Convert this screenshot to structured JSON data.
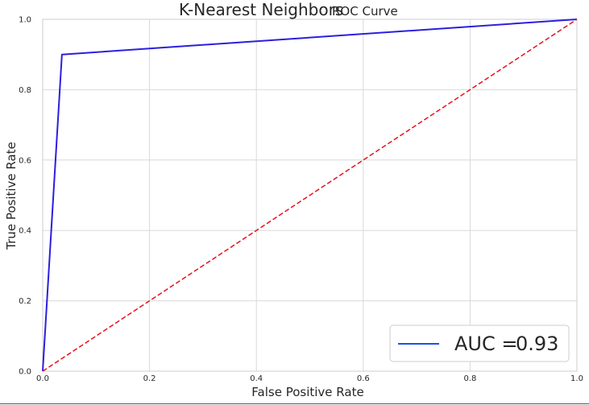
{
  "title": {
    "main": "K-Nearest Neighbors",
    "sub": "ROC Curve"
  },
  "colors": {
    "roc_line": "#2b1fe0",
    "diagonal": "#e8101c",
    "grid": "#d9d9d9",
    "axis_frame": "#cccccc",
    "legend_line": "#1f4fe8"
  },
  "chart_data": {
    "type": "line",
    "title": "K-Nearest Neighbors ROC Curve",
    "xlabel": "False Positive Rate",
    "ylabel": "True Positive Rate",
    "xlim": [
      0.0,
      1.0
    ],
    "ylim": [
      0.0,
      1.0
    ],
    "xticks": [
      "0.0",
      "0.2",
      "0.4",
      "0.6",
      "0.8",
      "1.0"
    ],
    "yticks": [
      "0.0",
      "0.2",
      "0.4",
      "0.6",
      "0.8",
      "1.0"
    ],
    "grid": true,
    "legend_position": "lower-right",
    "series": [
      {
        "name": "AUC = 0.93",
        "style": "solid",
        "x": [
          0.0,
          0.036,
          1.0
        ],
        "y": [
          0.0,
          0.9,
          1.0
        ]
      },
      {
        "style": "dashed",
        "x": [
          0.0,
          1.0
        ],
        "y": [
          0.0,
          1.0
        ]
      }
    ],
    "legend": {
      "label_prefix": "AUC =",
      "label_value": "0.93"
    }
  }
}
